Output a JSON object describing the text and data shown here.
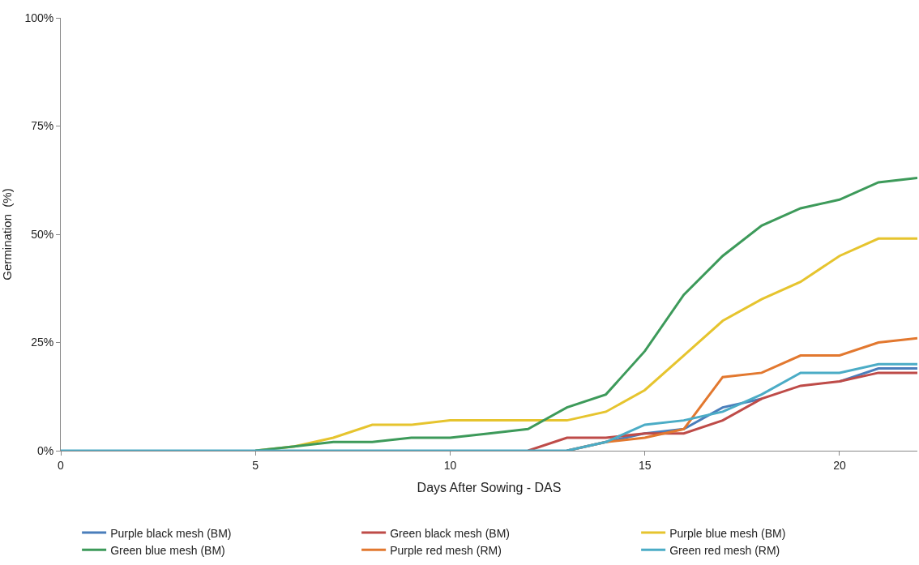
{
  "chart_data": {
    "type": "line",
    "xlabel": "Days After Sowing - DAS",
    "ylabel": "Germination  (%)",
    "x": [
      0,
      1,
      2,
      3,
      4,
      5,
      6,
      7,
      8,
      9,
      10,
      11,
      12,
      13,
      14,
      15,
      16,
      17,
      18,
      19,
      20,
      21,
      22
    ],
    "series": [
      {
        "name": "Purple black mesh (BM)",
        "color": "#4a7ebb",
        "values": [
          null,
          null,
          null,
          null,
          null,
          null,
          null,
          null,
          null,
          null,
          null,
          null,
          null,
          0,
          2,
          4,
          5,
          10,
          12,
          null,
          16,
          19,
          19
        ]
      },
      {
        "name": "Green black mesh (BM)",
        "color": "#be4b48",
        "values": [
          null,
          null,
          null,
          null,
          null,
          null,
          null,
          null,
          null,
          null,
          null,
          null,
          0,
          3,
          3,
          4,
          4,
          7,
          12,
          15,
          16,
          18,
          18
        ]
      },
      {
        "name": "Purple blue mesh (BM)",
        "color": "#e6c42e",
        "values": [
          null,
          null,
          null,
          null,
          null,
          0,
          1,
          3,
          6,
          6,
          7,
          7,
          7,
          7,
          9,
          14,
          22,
          30,
          35,
          39,
          45,
          49,
          49
        ]
      },
      {
        "name": "Green blue mesh (BM)",
        "color": "#3d9a5a",
        "values": [
          null,
          null,
          null,
          null,
          null,
          0,
          1,
          2,
          2,
          3,
          3,
          4,
          5,
          10,
          13,
          23,
          36,
          45,
          52,
          56,
          58,
          62,
          63
        ]
      },
      {
        "name": "Purple red mesh (RM)",
        "color": "#e2782f",
        "values": [
          null,
          null,
          null,
          null,
          null,
          null,
          null,
          null,
          null,
          null,
          null,
          null,
          null,
          0,
          2,
          3,
          5,
          17,
          18,
          22,
          22,
          25,
          26
        ]
      },
      {
        "name": "Green red mesh (RM)",
        "color": "#4bacc6",
        "values": [
          0,
          0,
          0,
          0,
          0,
          0,
          0,
          0,
          0,
          0,
          0,
          0,
          0,
          0,
          2,
          6,
          7,
          9,
          13,
          18,
          18,
          20,
          20
        ]
      }
    ],
    "xlim": [
      0,
      22
    ],
    "xticks": [
      0,
      5,
      10,
      15,
      20
    ],
    "ylim": [
      0,
      100
    ],
    "yticks": [
      {
        "value": 0,
        "label": "0%"
      },
      {
        "value": 25,
        "label": "25%"
      },
      {
        "value": 50,
        "label": "50%"
      },
      {
        "value": 75,
        "label": "75%"
      },
      {
        "value": 100,
        "label": "100%"
      }
    ],
    "grid": false,
    "legend": "bottom",
    "marker": "none",
    "line_style": "solid"
  }
}
